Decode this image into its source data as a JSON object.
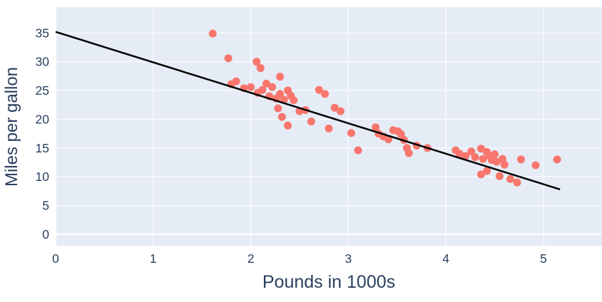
{
  "chart_data": {
    "type": "scatter",
    "title": "",
    "xlabel": "Pounds in 1000s",
    "ylabel": "Miles per gallon",
    "xlim": [
      0,
      5.6
    ],
    "ylim": [
      -2,
      39.5
    ],
    "x_ticks": [
      0,
      1,
      2,
      3,
      4,
      5
    ],
    "y_ticks": [
      0,
      5,
      10,
      15,
      20,
      25,
      30,
      35
    ],
    "grid": true,
    "legend": "none",
    "plot_bg": "#e5ecf6",
    "grid_color": "#ffffff",
    "axis_text_color": "#2a3f5f",
    "point_color": "#f8766d",
    "line_color": "#000000",
    "points": [
      [
        1.61,
        34.9
      ],
      [
        1.77,
        30.6
      ],
      [
        1.8,
        26.1
      ],
      [
        1.85,
        26.6
      ],
      [
        1.93,
        25.4
      ],
      [
        2.06,
        30.0
      ],
      [
        2.1,
        28.9
      ],
      [
        2.0,
        25.6
      ],
      [
        2.07,
        24.6
      ],
      [
        2.12,
        25.1
      ],
      [
        2.16,
        26.2
      ],
      [
        2.19,
        24.0
      ],
      [
        2.22,
        25.6
      ],
      [
        2.26,
        23.6
      ],
      [
        2.3,
        27.4
      ],
      [
        2.3,
        24.4
      ],
      [
        2.28,
        21.9
      ],
      [
        2.34,
        23.4
      ],
      [
        2.38,
        25.0
      ],
      [
        2.41,
        24.1
      ],
      [
        2.44,
        23.3
      ],
      [
        2.32,
        20.4
      ],
      [
        2.38,
        18.9
      ],
      [
        2.5,
        21.4
      ],
      [
        2.56,
        21.6
      ],
      [
        2.62,
        19.6
      ],
      [
        2.7,
        25.1
      ],
      [
        2.76,
        24.4
      ],
      [
        2.8,
        18.4
      ],
      [
        2.86,
        22.0
      ],
      [
        2.92,
        21.4
      ],
      [
        3.03,
        17.6
      ],
      [
        3.1,
        14.6
      ],
      [
        3.28,
        18.6
      ],
      [
        3.31,
        17.5
      ],
      [
        3.36,
        17.0
      ],
      [
        3.41,
        16.5
      ],
      [
        3.46,
        18.1
      ],
      [
        3.51,
        17.9
      ],
      [
        3.54,
        17.4
      ],
      [
        3.57,
        16.4
      ],
      [
        3.6,
        15.0
      ],
      [
        3.62,
        14.1
      ],
      [
        3.7,
        15.4
      ],
      [
        3.81,
        15.0
      ],
      [
        4.1,
        14.6
      ],
      [
        4.14,
        14.0
      ],
      [
        4.2,
        13.6
      ],
      [
        4.26,
        14.4
      ],
      [
        4.3,
        13.4
      ],
      [
        4.36,
        14.9
      ],
      [
        4.38,
        13.1
      ],
      [
        4.42,
        14.3
      ],
      [
        4.45,
        13.6
      ],
      [
        4.47,
        12.9
      ],
      [
        4.5,
        13.9
      ],
      [
        4.52,
        12.6
      ],
      [
        4.58,
        13.1
      ],
      [
        4.6,
        12.1
      ],
      [
        4.36,
        10.4
      ],
      [
        4.42,
        11.0
      ],
      [
        4.55,
        10.1
      ],
      [
        4.66,
        9.6
      ],
      [
        4.73,
        9.0
      ],
      [
        4.77,
        13.0
      ],
      [
        4.92,
        12.0
      ],
      [
        5.14,
        13.0
      ]
    ],
    "regression_line": {
      "x": [
        0,
        5.17
      ],
      "y": [
        35.2,
        7.8
      ]
    }
  }
}
